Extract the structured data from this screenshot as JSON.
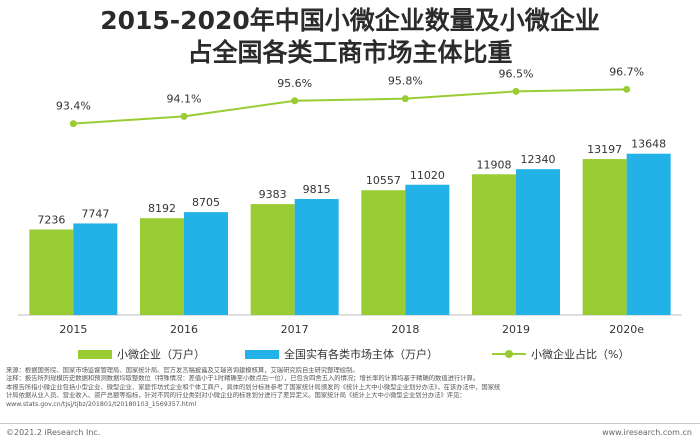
{
  "title_line1": "2015-2020年中国小微企业数量及小微企业",
  "title_line2": "占全国各类工商市场主体比重",
  "chart_data": {
    "type": "bar",
    "categories": [
      "2015",
      "2016",
      "2017",
      "2018",
      "2019",
      "2020e"
    ],
    "series": [
      {
        "name": "小微企业（万户）",
        "type": "bar",
        "color": "#99cc33",
        "values": [
          7236,
          8192,
          9383,
          10557,
          11908,
          13197
        ]
      },
      {
        "name": "全国实有各类市场主体（万户）",
        "type": "bar",
        "color": "#22b2e8",
        "values": [
          7747,
          8705,
          9815,
          11020,
          12340,
          13648
        ]
      },
      {
        "name": "小微企业占比（%）",
        "type": "line",
        "color": "#99cc33",
        "values": [
          93.4,
          94.1,
          95.6,
          95.8,
          96.5,
          96.7
        ],
        "labels": [
          "93.4%",
          "94.1%",
          "95.6%",
          "95.8%",
          "96.5%",
          "96.7%"
        ]
      }
    ],
    "ylim": [
      0,
      22000
    ],
    "y2lim": [
      75,
      100
    ],
    "grid": false,
    "legend_position": "bottom"
  },
  "notes": [
    "来源：根据国务院、国家市场监督管理局、国家统计局、官方发言稿披露及艾瑞咨询建模核算，艾瑞研究院自主研究整理绘制。",
    "注释：报告所列规模历史数据和预测数据均取整数位（特殊情况：差值小于1时精确至小数点后一位），已包含四舍五入的情况；增长率的计算均基于精确的数值进行计算。",
    "本报告所指小微企业包括小型企业、微型企业、家庭作坊式企业和个体工商户，具体的划分标准参考了国家统计局颁发的《统计上大中小微型企业划分办法》，在该办法中，国家统",
    "计局依据从业人员、营业收入、资产总额等指标，针对不同的行业类别对小微企业的标准划分进行了差异定义。国家统计局《统计上大中小微型企业划分办法》评见：",
    "www.stats.gov.cn/tjsj/tjbz/201801/t20180103_1569357.html"
  ],
  "footer": {
    "left": "©2021.2 iResearch Inc.",
    "right": "www.iresearch.com.cn"
  }
}
